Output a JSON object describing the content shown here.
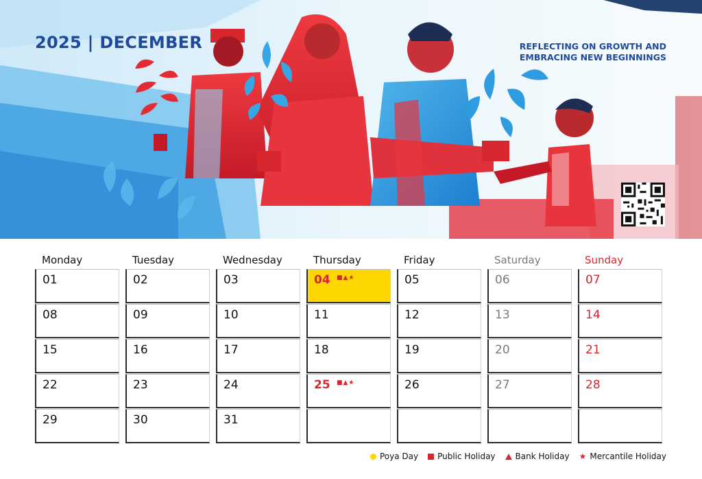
{
  "header": {
    "month_title": "2025 | DECEMBER",
    "tagline_line1": "REFLECTING ON GROWTH AND",
    "tagline_line2": "EMBRACING NEW BEGINNINGS"
  },
  "colors": {
    "title_blue": "#1f4a9c",
    "holiday_red": "#d7262f",
    "poya_yellow": "#ffd700",
    "weekend_gray": "#777777"
  },
  "weekdays": [
    "Monday",
    "Tuesday",
    "Wednesday",
    "Thursday",
    "Friday",
    "Saturday",
    "Sunday"
  ],
  "weeks": [
    [
      "01",
      "02",
      "03",
      "04",
      "05",
      "06",
      "07"
    ],
    [
      "08",
      "09",
      "10",
      "11",
      "12",
      "13",
      "14"
    ],
    [
      "15",
      "16",
      "17",
      "18",
      "19",
      "20",
      "21"
    ],
    [
      "22",
      "23",
      "24",
      "25",
      "26",
      "27",
      "28"
    ],
    [
      "29",
      "30",
      "31",
      "",
      "",
      "",
      ""
    ]
  ],
  "holidays": {
    "poya": [
      "04"
    ],
    "marked_days": {
      "04": "■▲★",
      "25": "■▲★"
    }
  },
  "legend": [
    {
      "icon": "circle",
      "label": "Poya Day"
    },
    {
      "icon": "square",
      "label": "Public Holiday"
    },
    {
      "icon": "triangle",
      "label": "Bank Holiday"
    },
    {
      "icon": "star",
      "label": "Mercantile Holiday"
    }
  ],
  "banner": {
    "illustration": "people-holding-plants-illustration",
    "qr_icon": "qr-code-icon"
  }
}
